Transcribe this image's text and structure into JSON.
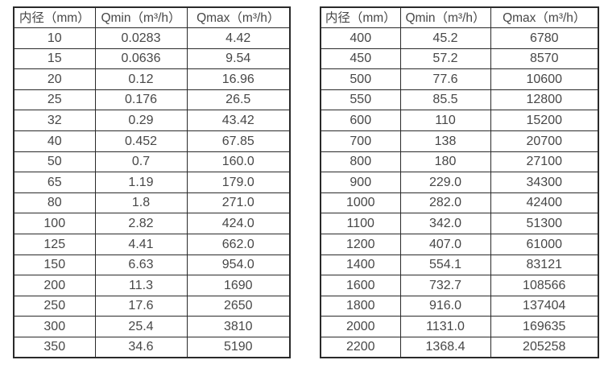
{
  "colors": {
    "background": "#ffffff",
    "border": "#2a2a2a",
    "text": "#474747"
  },
  "tables": [
    {
      "name": "flow-table-small-diameters",
      "headers": [
        "内径（mm）",
        "Qmin（m³/h）",
        "Qmax（m³/h）"
      ],
      "rows": [
        [
          "10",
          "0.0283",
          "4.42"
        ],
        [
          "15",
          "0.0636",
          "9.54"
        ],
        [
          "20",
          "0.12",
          "16.96"
        ],
        [
          "25",
          "0.176",
          "26.5"
        ],
        [
          "32",
          "0.29",
          "43.42"
        ],
        [
          "40",
          "0.452",
          "67.85"
        ],
        [
          "50",
          "0.7",
          "160.0"
        ],
        [
          "65",
          "1.19",
          "179.0"
        ],
        [
          "80",
          "1.8",
          "271.0"
        ],
        [
          "100",
          "2.82",
          "424.0"
        ],
        [
          "125",
          "4.41",
          "662.0"
        ],
        [
          "150",
          "6.63",
          "954.0"
        ],
        [
          "200",
          "11.3",
          "1690"
        ],
        [
          "250",
          "17.6",
          "2650"
        ],
        [
          "300",
          "25.4",
          "3810"
        ],
        [
          "350",
          "34.6",
          "5190"
        ]
      ]
    },
    {
      "name": "flow-table-large-diameters",
      "headers": [
        "内径（mm）",
        "Qmin（m³/h）",
        "Qmax（m³/h）"
      ],
      "rows": [
        [
          "400",
          "45.2",
          "6780"
        ],
        [
          "450",
          "57.2",
          "8570"
        ],
        [
          "500",
          "77.6",
          "10600"
        ],
        [
          "550",
          "85.5",
          "12800"
        ],
        [
          "600",
          "110",
          "15200"
        ],
        [
          "700",
          "138",
          "20700"
        ],
        [
          "800",
          "180",
          "27100"
        ],
        [
          "900",
          "229.0",
          "34300"
        ],
        [
          "1000",
          "282.0",
          "42400"
        ],
        [
          "1100",
          "342.0",
          "51300"
        ],
        [
          "1200",
          "407.0",
          "61000"
        ],
        [
          "1400",
          "554.1",
          "83121"
        ],
        [
          "1600",
          "732.7",
          "108566"
        ],
        [
          "1800",
          "916.0",
          "137404"
        ],
        [
          "2000",
          "1131.0",
          "169635"
        ],
        [
          "2200",
          "1368.4",
          "205258"
        ]
      ]
    }
  ]
}
